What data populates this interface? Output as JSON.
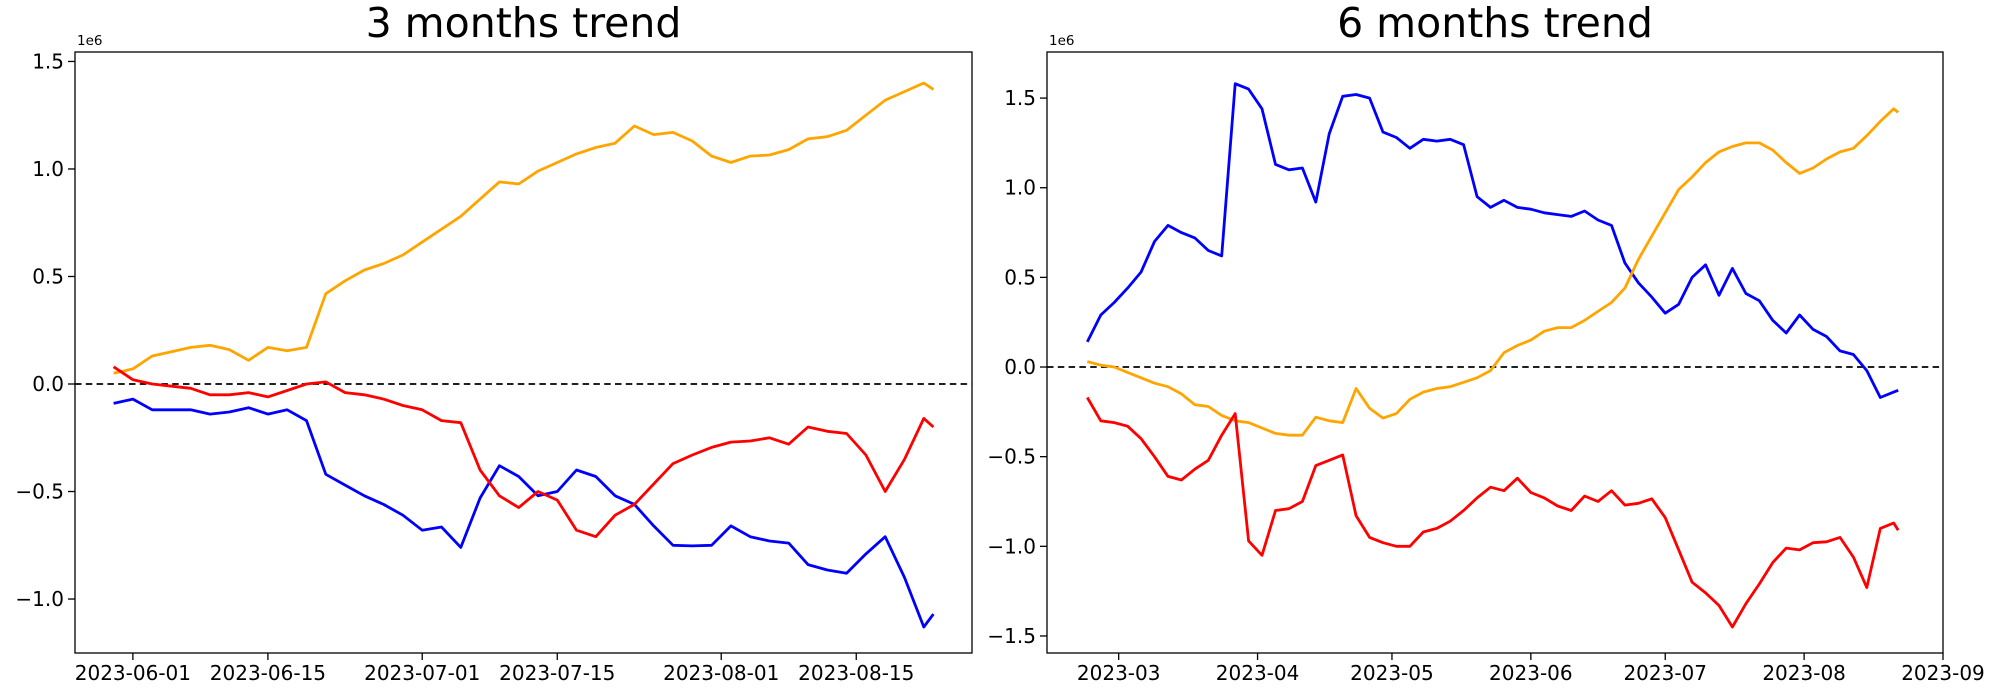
{
  "figure": {
    "background": "#ffffff",
    "text_color": "#000000"
  },
  "chart_data": [
    {
      "type": "line",
      "title": "3 months trend",
      "offset_label": "1e6",
      "legend_position": "none",
      "grid": false,
      "zero_line": true,
      "zero_line_color": "#000000",
      "x_axis": {
        "lim": [
          "2023-05-26",
          "2023-08-27"
        ],
        "ticks": [
          {
            "date": "2023-06-01",
            "label": "2023-06-01"
          },
          {
            "date": "2023-06-15",
            "label": "2023-06-15"
          },
          {
            "date": "2023-07-01",
            "label": "2023-07-01"
          },
          {
            "date": "2023-07-15",
            "label": "2023-07-15"
          },
          {
            "date": "2023-08-01",
            "label": "2023-08-01"
          },
          {
            "date": "2023-08-15",
            "label": "2023-08-15"
          }
        ]
      },
      "y_axis": {
        "lim": [
          -1.251,
          1.544
        ],
        "unit": "1e6",
        "ticks": [
          {
            "v": 1.5,
            "label": "1.5"
          },
          {
            "v": 1.0,
            "label": "1.0"
          },
          {
            "v": 0.5,
            "label": "0.5"
          },
          {
            "v": 0.0,
            "label": "0.0"
          },
          {
            "v": -0.5,
            "label": "−0.5"
          },
          {
            "v": -1.0,
            "label": "−1.0"
          }
        ]
      },
      "x": [
        "2023-05-30",
        "2023-06-01",
        "2023-06-03",
        "2023-06-05",
        "2023-06-07",
        "2023-06-09",
        "2023-06-11",
        "2023-06-13",
        "2023-06-15",
        "2023-06-17",
        "2023-06-19",
        "2023-06-21",
        "2023-06-23",
        "2023-06-25",
        "2023-06-27",
        "2023-06-29",
        "2023-07-01",
        "2023-07-03",
        "2023-07-05",
        "2023-07-07",
        "2023-07-09",
        "2023-07-11",
        "2023-07-13",
        "2023-07-15",
        "2023-07-17",
        "2023-07-19",
        "2023-07-21",
        "2023-07-23",
        "2023-07-25",
        "2023-07-27",
        "2023-07-29",
        "2023-07-31",
        "2023-08-02",
        "2023-08-04",
        "2023-08-06",
        "2023-08-08",
        "2023-08-10",
        "2023-08-12",
        "2023-08-14",
        "2023-08-16",
        "2023-08-18",
        "2023-08-20",
        "2023-08-22",
        "2023-08-23"
      ],
      "series": [
        {
          "name": "orange",
          "color": "#FFA500",
          "values": [
            0.05,
            0.07,
            0.13,
            0.15,
            0.17,
            0.18,
            0.16,
            0.11,
            0.17,
            0.155,
            0.17,
            0.42,
            0.48,
            0.53,
            0.56,
            0.6,
            0.66,
            0.72,
            0.78,
            0.86,
            0.94,
            0.93,
            0.99,
            1.03,
            1.07,
            1.1,
            1.12,
            1.2,
            1.16,
            1.17,
            1.13,
            1.06,
            1.03,
            1.06,
            1.065,
            1.09,
            1.14,
            1.15,
            1.18,
            1.25,
            1.32,
            1.36,
            1.4,
            1.37
          ]
        },
        {
          "name": "blue",
          "color": "#0000FF",
          "values": [
            -0.09,
            -0.07,
            -0.12,
            -0.12,
            -0.12,
            -0.14,
            -0.13,
            -0.11,
            -0.14,
            -0.12,
            -0.17,
            -0.42,
            -0.47,
            -0.52,
            -0.56,
            -0.61,
            -0.68,
            -0.665,
            -0.76,
            -0.53,
            -0.38,
            -0.43,
            -0.52,
            -0.5,
            -0.4,
            -0.43,
            -0.52,
            -0.56,
            -0.66,
            -0.75,
            -0.753,
            -0.75,
            -0.66,
            -0.71,
            -0.73,
            -0.74,
            -0.84,
            -0.865,
            -0.88,
            -0.79,
            -0.71,
            -0.9,
            -1.13,
            -1.07
          ]
        },
        {
          "name": "red",
          "color": "#FF0000",
          "values": [
            0.08,
            0.02,
            0.0,
            -0.01,
            -0.02,
            -0.05,
            -0.05,
            -0.04,
            -0.06,
            -0.03,
            0.0,
            0.01,
            -0.04,
            -0.05,
            -0.07,
            -0.1,
            -0.12,
            -0.17,
            -0.18,
            -0.4,
            -0.52,
            -0.575,
            -0.5,
            -0.54,
            -0.68,
            -0.71,
            -0.61,
            -0.56,
            -0.465,
            -0.37,
            -0.33,
            -0.295,
            -0.27,
            -0.265,
            -0.25,
            -0.28,
            -0.2,
            -0.22,
            -0.23,
            -0.33,
            -0.5,
            -0.35,
            -0.16,
            -0.2
          ]
        }
      ]
    },
    {
      "type": "line",
      "title": "6 months trend",
      "offset_label": "1e6",
      "legend_position": "none",
      "grid": false,
      "zero_line": true,
      "zero_line_color": "#000000",
      "x_axis": {
        "lim": [
          "2023-02-13",
          "2023-09-01"
        ],
        "ticks": [
          {
            "date": "2023-03-01",
            "label": "2023-03"
          },
          {
            "date": "2023-04-01",
            "label": "2023-04"
          },
          {
            "date": "2023-05-01",
            "label": "2023-05"
          },
          {
            "date": "2023-06-01",
            "label": "2023-06"
          },
          {
            "date": "2023-07-01",
            "label": "2023-07"
          },
          {
            "date": "2023-08-01",
            "label": "2023-08"
          },
          {
            "date": "2023-09-01",
            "label": "2023-09"
          }
        ]
      },
      "y_axis": {
        "lim": [
          -1.595,
          1.757
        ],
        "unit": "1e6",
        "ticks": [
          {
            "v": 1.5,
            "label": "1.5"
          },
          {
            "v": 1.0,
            "label": "1.0"
          },
          {
            "v": 0.5,
            "label": "0.5"
          },
          {
            "v": 0.0,
            "label": "0.0"
          },
          {
            "v": -0.5,
            "label": "−0.5"
          },
          {
            "v": -1.0,
            "label": "−1.0"
          },
          {
            "v": -1.5,
            "label": "−1.5"
          }
        ]
      },
      "x": [
        "2023-02-22",
        "2023-02-25",
        "2023-02-28",
        "2023-03-03",
        "2023-03-06",
        "2023-03-09",
        "2023-03-12",
        "2023-03-15",
        "2023-03-18",
        "2023-03-21",
        "2023-03-24",
        "2023-03-27",
        "2023-03-30",
        "2023-04-02",
        "2023-04-05",
        "2023-04-08",
        "2023-04-11",
        "2023-04-14",
        "2023-04-17",
        "2023-04-20",
        "2023-04-23",
        "2023-04-26",
        "2023-04-29",
        "2023-05-02",
        "2023-05-05",
        "2023-05-08",
        "2023-05-11",
        "2023-05-14",
        "2023-05-17",
        "2023-05-20",
        "2023-05-23",
        "2023-05-26",
        "2023-05-29",
        "2023-06-01",
        "2023-06-04",
        "2023-06-07",
        "2023-06-10",
        "2023-06-13",
        "2023-06-16",
        "2023-06-19",
        "2023-06-22",
        "2023-06-25",
        "2023-06-28",
        "2023-07-01",
        "2023-07-04",
        "2023-07-07",
        "2023-07-10",
        "2023-07-13",
        "2023-07-16",
        "2023-07-19",
        "2023-07-22",
        "2023-07-25",
        "2023-07-28",
        "2023-07-31",
        "2023-08-03",
        "2023-08-06",
        "2023-08-09",
        "2023-08-12",
        "2023-08-15",
        "2023-08-18",
        "2023-08-21",
        "2023-08-22"
      ],
      "series": [
        {
          "name": "blue",
          "color": "#0000FF",
          "values": [
            0.14,
            0.29,
            0.36,
            0.44,
            0.53,
            0.7,
            0.79,
            0.75,
            0.72,
            0.65,
            0.62,
            1.58,
            1.55,
            1.44,
            1.13,
            1.1,
            1.11,
            0.92,
            1.3,
            1.51,
            1.52,
            1.5,
            1.31,
            1.28,
            1.22,
            1.27,
            1.26,
            1.27,
            1.24,
            0.95,
            0.89,
            0.93,
            0.89,
            0.88,
            0.86,
            0.85,
            0.84,
            0.87,
            0.82,
            0.79,
            0.58,
            0.47,
            0.39,
            0.3,
            0.35,
            0.5,
            0.57,
            0.4,
            0.55,
            0.41,
            0.37,
            0.26,
            0.19,
            0.29,
            0.21,
            0.17,
            0.09,
            0.07,
            -0.02,
            -0.17,
            -0.14,
            -0.13
          ]
        },
        {
          "name": "orange",
          "color": "#FFA500",
          "values": [
            0.03,
            0.01,
            0.0,
            -0.03,
            -0.06,
            -0.09,
            -0.11,
            -0.15,
            -0.21,
            -0.22,
            -0.27,
            -0.3,
            -0.31,
            -0.34,
            -0.37,
            -0.38,
            -0.38,
            -0.28,
            -0.3,
            -0.31,
            -0.12,
            -0.23,
            -0.285,
            -0.26,
            -0.18,
            -0.14,
            -0.12,
            -0.11,
            -0.085,
            -0.06,
            -0.02,
            0.08,
            0.12,
            0.15,
            0.2,
            0.22,
            0.22,
            0.26,
            0.31,
            0.36,
            0.44,
            0.6,
            0.73,
            0.86,
            0.99,
            1.06,
            1.14,
            1.2,
            1.23,
            1.25,
            1.25,
            1.21,
            1.14,
            1.08,
            1.11,
            1.16,
            1.2,
            1.22,
            1.29,
            1.37,
            1.44,
            1.42
          ]
        },
        {
          "name": "red",
          "color": "#FF0000",
          "values": [
            -0.17,
            -0.3,
            -0.31,
            -0.33,
            -0.4,
            -0.5,
            -0.61,
            -0.63,
            -0.57,
            -0.52,
            -0.38,
            -0.26,
            -0.97,
            -1.05,
            -0.8,
            -0.79,
            -0.75,
            -0.55,
            -0.52,
            -0.49,
            -0.83,
            -0.95,
            -0.98,
            -1.0,
            -1.0,
            -0.92,
            -0.9,
            -0.86,
            -0.8,
            -0.73,
            -0.67,
            -0.69,
            -0.62,
            -0.7,
            -0.73,
            -0.775,
            -0.8,
            -0.72,
            -0.75,
            -0.69,
            -0.77,
            -0.76,
            -0.735,
            -0.84,
            -1.02,
            -1.2,
            -1.26,
            -1.33,
            -1.45,
            -1.32,
            -1.21,
            -1.09,
            -1.01,
            -1.02,
            -0.98,
            -0.975,
            -0.95,
            -1.06,
            -1.23,
            -0.9,
            -0.87,
            -0.91
          ]
        }
      ]
    }
  ]
}
